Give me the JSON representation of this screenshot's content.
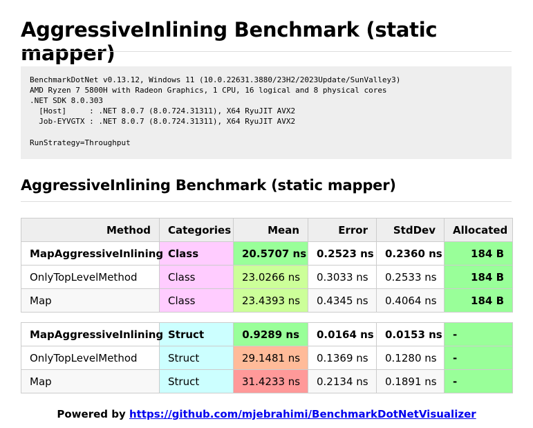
{
  "header": {
    "title": "AggressiveInlining Benchmark (static mapper)"
  },
  "environment": {
    "lines": [
      "BenchmarkDotNet v0.13.12, Windows 11 (10.0.22631.3880/23H2/2023Update/SunValley3)",
      "AMD Ryzen 7 5800H with Radeon Graphics, 1 CPU, 16 logical and 8 physical cores",
      ".NET SDK 8.0.303",
      "  [Host]     : .NET 8.0.7 (8.0.724.31311), X64 RyuJIT AVX2",
      "  Job-EYVGTX : .NET 8.0.7 (8.0.724.31311), X64 RyuJIT AVX2"
    ],
    "run_strategy": "RunStrategy=Throughput"
  },
  "section": {
    "title": "AggressiveInlining Benchmark (static mapper)"
  },
  "table": {
    "columns": [
      "Method",
      "Categories",
      "Mean",
      "Error",
      "StdDev",
      "Allocated"
    ],
    "groups": [
      {
        "rows": [
          [
            "MapAggressiveInlining",
            "Class",
            "20.5707 ns",
            "0.2523 ns",
            "0.2360 ns",
            "184 B"
          ],
          [
            "OnlyTopLevelMethod",
            "Class",
            "23.0266 ns",
            "0.3033 ns",
            "0.2533 ns",
            "184 B"
          ],
          [
            "Map",
            "Class",
            "23.4393 ns",
            "0.4345 ns",
            "0.4064 ns",
            "184 B"
          ]
        ]
      },
      {
        "rows": [
          [
            "MapAggressiveInlining",
            "Struct",
            "0.9289 ns",
            "0.0164 ns",
            "0.0153 ns",
            "-"
          ],
          [
            "OnlyTopLevelMethod",
            "Struct",
            "29.1481 ns",
            "0.1369 ns",
            "0.1280 ns",
            "-"
          ],
          [
            "Map",
            "Struct",
            "31.4233 ns",
            "0.2134 ns",
            "0.1891 ns",
            "-"
          ]
        ]
      }
    ]
  },
  "footer": {
    "prefix": "Powered by",
    "link": "https://github.com/mjebrahimi/BenchmarkDotNetVisualizer"
  }
}
